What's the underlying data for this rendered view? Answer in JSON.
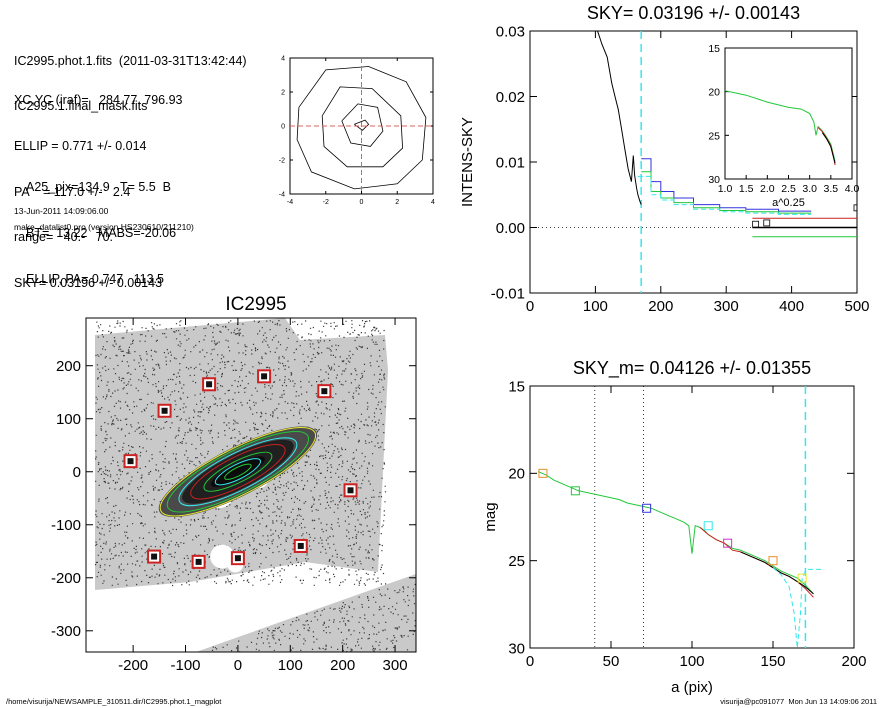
{
  "header": {
    "lines_a": [
      "IC2995.phot.1.fits  (2011-03-31T13:42:44)",
      "IC2995.1.final_mask.fits"
    ],
    "lines_b": [
      "XC,YC (iraf)=   284.77, 796.93",
      "ELLIP = 0.771 +/- 0.014",
      "PA    = 117.0 +/-   2.4",
      "range=   40.-   70.",
      "SKY= 0.03196 +/- 0.00143"
    ],
    "lines_c": [
      "A25_pix=134.9   T= 5.5  B",
      "BT=  13.22   MABS=-20.06",
      "ELLIP, PA= 0.747   113.5"
    ],
    "date": "13-Jun-2011 14:09:06.00",
    "program": "make_datalist0.pro (version HS230610/211210)"
  },
  "footer": {
    "left": "/home/visurija/NEWSAMPLE_310511.dir/IC2995.phot.1_magplot",
    "right": "visurija@pc091077  Mon Jun 13 14:09:06 2011"
  },
  "colors": {
    "contour_red": "#e06060",
    "cyan": "#33e8ee",
    "green": "#22c83a",
    "red": "#cc2222",
    "blue": "#3333dd",
    "orange": "#e89028",
    "magenta": "#cc33cc",
    "dark_green": "#1a7a1a"
  },
  "chart_data": [
    {
      "type": "line",
      "id": "contour_plot",
      "title": "",
      "xlim": [
        -4,
        4
      ],
      "ylim": [
        -4,
        4
      ],
      "x_ticks": [
        -4,
        -2,
        0,
        2,
        4
      ],
      "y_ticks": [
        -4,
        -2,
        0,
        2,
        4
      ],
      "x_tick_labels": [
        "-4",
        "-2",
        "0",
        "2",
        "4"
      ],
      "y_tick_labels": [
        "-4",
        "-2",
        "0",
        "2",
        "4"
      ],
      "center_cross": [
        0,
        0
      ],
      "contours": [
        [
          [
            -0.4,
            0.1
          ],
          [
            0.2,
            0.35
          ],
          [
            0.4,
            0.1
          ],
          [
            0.05,
            -0.25
          ],
          [
            -0.4,
            0.1
          ]
        ],
        [
          [
            -1.1,
            0.3
          ],
          [
            -0.2,
            1.3
          ],
          [
            0.9,
            1.1
          ],
          [
            1.2,
            -0.3
          ],
          [
            0.5,
            -1.2
          ],
          [
            -0.6,
            -1.0
          ],
          [
            -1.1,
            0.3
          ]
        ],
        [
          [
            -2.2,
            0.6
          ],
          [
            -1.2,
            2.3
          ],
          [
            0.6,
            2.2
          ],
          [
            2.2,
            0.6
          ],
          [
            2.3,
            -1.3
          ],
          [
            1.2,
            -2.4
          ],
          [
            -0.8,
            -2.4
          ],
          [
            -2.1,
            -1.2
          ],
          [
            -2.2,
            0.6
          ]
        ],
        [
          [
            -3.5,
            1.1
          ],
          [
            -2.0,
            3.3
          ],
          [
            0.4,
            3.5
          ],
          [
            2.5,
            2.6
          ],
          [
            3.6,
            0.5
          ],
          [
            3.4,
            -2.0
          ],
          [
            2.0,
            -3.4
          ],
          [
            -0.4,
            -3.7
          ],
          [
            -2.8,
            -2.7
          ],
          [
            -3.6,
            -0.8
          ],
          [
            -3.5,
            1.1
          ]
        ]
      ]
    },
    {
      "type": "line",
      "id": "sky_plot",
      "title": "SKY= 0.03196 +/- 0.00143",
      "xlabel": "",
      "ylabel": "INTENS-SKY",
      "xlim": [
        0,
        500
      ],
      "ylim": [
        -0.01,
        0.03
      ],
      "x_ticks": [
        0,
        100,
        200,
        300,
        400,
        500
      ],
      "y_ticks": [
        -0.01,
        0.0,
        0.01,
        0.02,
        0.03
      ],
      "x_tick_labels": [
        "0",
        "100",
        "200",
        "300",
        "400",
        "500"
      ],
      "y_tick_labels": [
        "-0.01",
        "0.00",
        "0.01",
        "0.02",
        "0.03"
      ],
      "cyan_vline": 170,
      "zero_line": 0.0,
      "series": [
        {
          "color": "black",
          "x": [
            100,
            110,
            118,
            125,
            130,
            135,
            140,
            145,
            150,
            155,
            158,
            160,
            163,
            165,
            168,
            170
          ],
          "y": [
            0.031,
            0.028,
            0.026,
            0.022,
            0.02,
            0.018,
            0.015,
            0.012,
            0.009,
            0.007,
            0.011,
            0.008,
            0.006,
            0.005,
            0.004,
            0.0035
          ]
        },
        {
          "color": "blue",
          "x": [
            170,
            185,
            185,
            200,
            200,
            220,
            220,
            250,
            250,
            290,
            290,
            330,
            330,
            380,
            380,
            430
          ],
          "y": [
            0.0105,
            0.0105,
            0.007,
            0.007,
            0.0055,
            0.0055,
            0.0045,
            0.0045,
            0.0035,
            0.0035,
            0.003,
            0.003,
            0.0028,
            0.0028,
            0.0025,
            0.0025
          ]
        },
        {
          "color": "green",
          "x": [
            170,
            185,
            185,
            200,
            200,
            220,
            220,
            250,
            250,
            290,
            290,
            330,
            330,
            380,
            380,
            430
          ],
          "y": [
            0.0085,
            0.0085,
            0.0055,
            0.0055,
            0.0045,
            0.0045,
            0.0038,
            0.0038,
            0.003,
            0.003,
            0.0026,
            0.0026,
            0.0024,
            0.0024,
            0.0022,
            0.0022
          ]
        },
        {
          "color": "cyan",
          "dashed": true,
          "x": [
            165,
            185,
            185,
            200,
            200,
            220,
            220,
            250,
            250,
            290,
            290,
            330,
            330,
            380,
            380,
            430
          ],
          "y": [
            0.0078,
            0.0078,
            0.005,
            0.005,
            0.0042,
            0.0042,
            0.0035,
            0.0035,
            0.0028,
            0.0028,
            0.0024,
            0.0024,
            0.0022,
            0.0022,
            0.002,
            0.002
          ]
        },
        {
          "color": "red",
          "x": [
            340,
            500
          ],
          "y": [
            0.0014,
            0.0014
          ]
        },
        {
          "color": "green",
          "x": [
            340,
            500
          ],
          "y": [
            -0.0014,
            -0.0014
          ]
        },
        {
          "color": "black",
          "x": [
            340,
            500
          ],
          "y": [
            0.0,
            0.0
          ]
        }
      ],
      "markers": [
        {
          "x": 345,
          "y": 0.0005,
          "color": "black"
        },
        {
          "x": 362,
          "y": 0.0007,
          "color": "black"
        },
        {
          "x": 500,
          "y": 0.003,
          "color": "black"
        }
      ],
      "inset": {
        "xlabel": "a^0.25",
        "xlim": [
          1.0,
          4.0
        ],
        "ylim": [
          15,
          30
        ],
        "x_ticks": [
          1.0,
          1.5,
          2.0,
          2.5,
          3.0,
          3.5,
          4.0
        ],
        "y_ticks": [
          15,
          20,
          25,
          30
        ],
        "x_tick_labels": [
          "1.0",
          "1.5",
          "2.0",
          "2.5",
          "3.0",
          "3.5",
          "4.0"
        ],
        "y_tick_labels": [
          "15",
          "20",
          "25",
          "30"
        ],
        "series": [
          {
            "color": "green",
            "x": [
              1.0,
              1.5,
              2.0,
              2.5,
              2.8,
              3.0,
              3.1,
              3.15,
              3.2,
              3.3,
              3.4,
              3.5,
              3.55,
              3.6
            ],
            "y": [
              19.9,
              20.4,
              21.2,
              21.8,
              22.0,
              22.5,
              23.5,
              25.0,
              24.0,
              24.5,
              25.2,
              26.0,
              27.0,
              28.0
            ]
          },
          {
            "color": "red",
            "x": [
              3.2,
              3.3,
              3.4,
              3.5,
              3.55,
              3.6
            ],
            "y": [
              24.1,
              24.6,
              25.3,
              26.2,
              27.2,
              28.4
            ]
          },
          {
            "color": "black",
            "x": [
              3.3,
              3.4,
              3.5,
              3.55,
              3.6
            ],
            "y": [
              24.7,
              25.4,
              26.3,
              27.3,
              28.2
            ]
          }
        ]
      }
    },
    {
      "type": "scatter",
      "id": "galaxy_image",
      "title": "IC2995",
      "xlim": [
        -290,
        340
      ],
      "ylim": [
        -340,
        290
      ],
      "x_ticks": [
        -200,
        -100,
        0,
        100,
        200,
        300
      ],
      "y_ticks": [
        -300,
        -200,
        -100,
        0,
        100,
        200
      ],
      "x_tick_labels": [
        "-200",
        "-100",
        "0",
        "100",
        "200",
        "300"
      ],
      "y_tick_labels": [
        "-300",
        "-200",
        "-100",
        "0",
        "100",
        "200"
      ],
      "ellipse_pa_deg": 27,
      "ellipses": [
        {
          "a": 28,
          "b": 8,
          "color": "#22c83a"
        },
        {
          "a": 48,
          "b": 14,
          "color": "#33e8ee"
        },
        {
          "a": 72,
          "b": 20,
          "color": "#22c83a"
        },
        {
          "a": 100,
          "b": 28,
          "color": "#cc2222"
        },
        {
          "a": 125,
          "b": 35,
          "color": "#33e8ee"
        },
        {
          "a": 150,
          "b": 40,
          "color": "#22c83a"
        },
        {
          "a": 165,
          "b": 44,
          "color": "#e8e830"
        }
      ],
      "masked_stars": [
        [
          -55,
          165
        ],
        [
          50,
          180
        ],
        [
          165,
          152
        ],
        [
          -140,
          115
        ],
        [
          -205,
          20
        ],
        [
          215,
          -35
        ],
        [
          -160,
          -160
        ],
        [
          -75,
          -170
        ],
        [
          0,
          -163
        ],
        [
          120,
          -140
        ]
      ]
    },
    {
      "type": "line",
      "id": "mag_plot",
      "title": "SKY_m=  0.04126 +/- 0.01355",
      "xlabel": "a (pix)",
      "ylabel": "mag",
      "xlim": [
        0,
        200
      ],
      "ylim": [
        30,
        15
      ],
      "x_ticks": [
        0,
        50,
        100,
        150,
        200
      ],
      "y_ticks": [
        15,
        20,
        25,
        30
      ],
      "x_tick_labels": [
        "0",
        "50",
        "100",
        "150",
        "200"
      ],
      "y_tick_labels": [
        "15",
        "20",
        "25",
        "30"
      ],
      "dotted_vlines": [
        40,
        70
      ],
      "cyan_vline": 170,
      "series": [
        {
          "color": "green",
          "x": [
            5,
            10,
            15,
            20,
            25,
            30,
            35,
            40,
            45,
            50,
            55,
            60,
            65,
            70,
            75,
            80,
            85,
            90,
            95,
            98,
            100,
            102,
            105,
            108,
            110,
            115,
            120,
            125,
            130,
            135,
            140,
            145,
            150,
            155,
            160,
            165,
            170,
            175
          ],
          "y": [
            19.9,
            20.1,
            20.4,
            20.6,
            20.8,
            21.0,
            21.1,
            21.2,
            21.3,
            21.4,
            21.5,
            21.7,
            21.8,
            21.9,
            22.0,
            22.2,
            22.4,
            22.6,
            22.8,
            23.0,
            24.6,
            23.0,
            23.1,
            23.3,
            23.5,
            23.8,
            24.0,
            24.3,
            24.4,
            24.6,
            24.8,
            25.0,
            25.3,
            25.6,
            25.8,
            26.0,
            26.4,
            26.9
          ]
        },
        {
          "color": "red",
          "x": [
            105,
            110,
            115,
            120,
            125,
            130,
            135,
            140,
            145,
            150,
            155,
            160,
            165,
            170,
            175
          ],
          "y": [
            23.1,
            23.5,
            23.8,
            24.0,
            24.4,
            24.5,
            24.7,
            24.9,
            25.1,
            25.4,
            25.7,
            25.9,
            26.2,
            26.6,
            27.1
          ]
        },
        {
          "color": "black",
          "x": [
            130,
            135,
            140,
            145,
            150,
            155,
            160,
            165,
            170,
            175
          ],
          "y": [
            24.5,
            24.7,
            24.9,
            25.1,
            25.4,
            25.7,
            25.9,
            26.2,
            26.5,
            26.9
          ]
        },
        {
          "color": "cyan",
          "dashed": true,
          "x": [
            150,
            155,
            160,
            163,
            165,
            167,
            168,
            170,
            172,
            175,
            180
          ],
          "y": [
            25.4,
            25.8,
            26.5,
            28.0,
            30.0,
            28.0,
            26.0,
            25.6,
            25.5,
            25.5,
            25.5
          ]
        }
      ],
      "markers": [
        {
          "x": 8,
          "y": 20.0,
          "color": "#e89028"
        },
        {
          "x": 28,
          "y": 21.0,
          "color": "#22c83a"
        },
        {
          "x": 72,
          "y": 22.0,
          "color": "#3333dd"
        },
        {
          "x": 110,
          "y": 23.0,
          "color": "#33e8ee"
        },
        {
          "x": 122,
          "y": 24.0,
          "color": "#cc33cc"
        },
        {
          "x": 150,
          "y": 25.0,
          "color": "#e89028"
        },
        {
          "x": 168,
          "y": 26.0,
          "color": "#e8e830"
        }
      ]
    }
  ]
}
